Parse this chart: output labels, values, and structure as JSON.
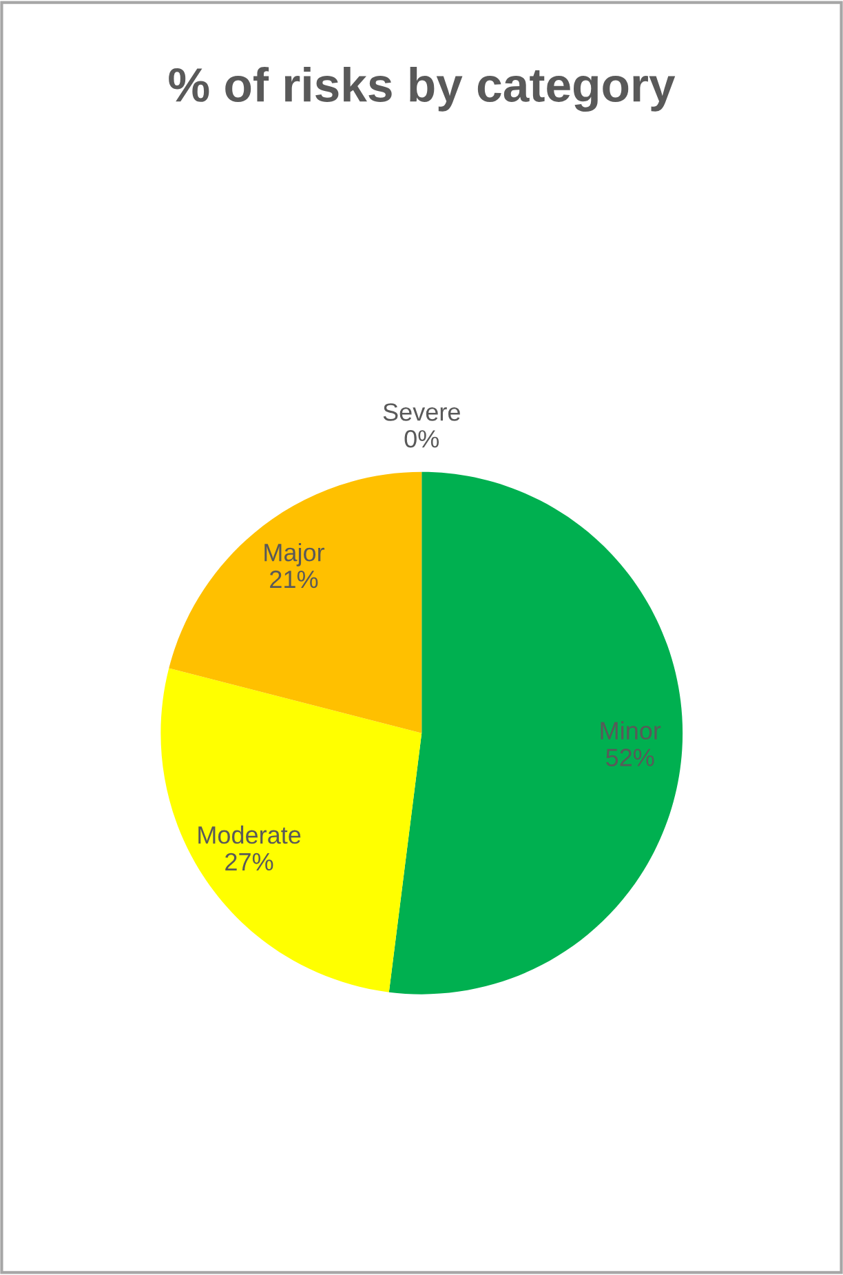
{
  "chart_data": {
    "type": "pie",
    "title": "% of risks by category",
    "categories": [
      "Minor",
      "Moderate",
      "Major",
      "Severe"
    ],
    "values": [
      52,
      27,
      21,
      0
    ],
    "colors": [
      "#00b050",
      "#ffff00",
      "#ffc000",
      "#ff0000"
    ],
    "value_labels": [
      "52%",
      "27%",
      "21%",
      "0%"
    ],
    "legend": false
  }
}
